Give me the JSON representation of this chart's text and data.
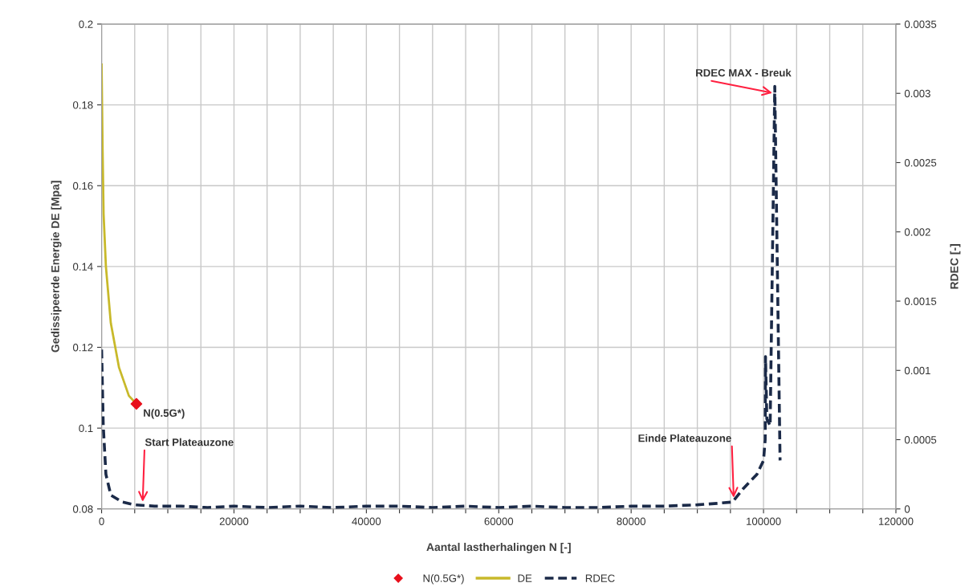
{
  "chart_data": {
    "type": "line",
    "xlabel": "Aantal lastherhalingen N [-]",
    "ylabel": "Gedissipeerde Energie DE [Mpa]",
    "y2label": "RDEC [-]",
    "xlim": [
      0,
      120000
    ],
    "xticks": [
      0,
      {
        "value": 5000,
        "label": null
      },
      {
        "value": 10000,
        "label": null
      },
      {
        "value": 15000,
        "label": null
      },
      20000,
      {
        "value": 25000,
        "label": null
      },
      {
        "value": 30000,
        "label": null
      },
      {
        "value": 35000,
        "label": null
      },
      40000,
      {
        "value": 45000,
        "label": null
      },
      {
        "value": 50000,
        "label": null
      },
      {
        "value": 55000,
        "label": null
      },
      60000,
      {
        "value": 65000,
        "label": null
      },
      {
        "value": 70000,
        "label": null
      },
      {
        "value": 75000,
        "label": null
      },
      80000,
      {
        "value": 85000,
        "label": null
      },
      {
        "value": 90000,
        "label": null
      },
      {
        "value": 95000,
        "label": null
      },
      100000,
      {
        "value": 105000,
        "label": null
      },
      {
        "value": 110000,
        "label": null
      },
      {
        "value": 115000,
        "label": null
      },
      120000
    ],
    "ylim": [
      0.08,
      0.2
    ],
    "yticks": [
      0.08,
      0.1,
      0.12,
      0.14,
      0.16,
      0.18,
      0.2
    ],
    "y2lim": [
      0,
      0.0035
    ],
    "y2ticks": [
      0,
      0.0005,
      0.001,
      0.0015,
      0.002,
      0.0025,
      0.003,
      0.0035
    ],
    "grid": true,
    "legend": "bottom",
    "series": [
      {
        "name": "N(0.5G*)",
        "type": "scatter",
        "marker": "diamond",
        "color": "#e8101c",
        "x": [
          5260
        ],
        "values": [
          0.106
        ]
      },
      {
        "name": "DE",
        "line_style": "solid",
        "color": "#c8b92a",
        "x": [
          0,
          150,
          300,
          650,
          1390,
          2630,
          4120,
          5260
        ],
        "values": [
          0.19,
          0.169,
          0.153,
          0.14,
          0.126,
          0.115,
          0.108,
          0.106
        ]
      },
      {
        "name": "RDEC",
        "axis": "y2",
        "line_style": "dashed",
        "color": "#1b2a48",
        "x": [
          0,
          250,
          650,
          1390,
          3100,
          5000,
          8000,
          12000,
          16000,
          20000,
          25000,
          30000,
          35000,
          40000,
          45000,
          50000,
          55000,
          60000,
          65000,
          70000,
          75000,
          80000,
          85000,
          90000,
          93000,
          95300,
          97000,
          99000,
          100000,
          100250,
          100300,
          100500,
          101000,
          101700,
          102500
        ],
        "values": [
          0.00115,
          0.0006,
          0.00025,
          0.0001,
          5e-05,
          3e-05,
          2e-05,
          2e-05,
          1e-05,
          2e-05,
          1e-05,
          2e-05,
          1e-05,
          2e-05,
          2e-05,
          1e-05,
          2e-05,
          1e-05,
          2e-05,
          1e-05,
          1e-05,
          2e-05,
          2e-05,
          3e-05,
          4e-05,
          5e-05,
          0.00015,
          0.00025,
          0.00035,
          0.0005,
          0.0011,
          0.00065,
          0.0006,
          0.00305,
          0.00035
        ]
      }
    ],
    "annotations": [
      {
        "text": "N(0.5G*)",
        "x": 5260,
        "y": 0.106
      },
      {
        "text": "Start Plateauzone",
        "x": 6200,
        "y": 0.0815
      },
      {
        "text": "Einde Plateauzone",
        "x": 95500,
        "y": 0.0825
      },
      {
        "text": "RDEC MAX - Breuk",
        "x": 101500,
        "y": 0.1829
      }
    ]
  }
}
